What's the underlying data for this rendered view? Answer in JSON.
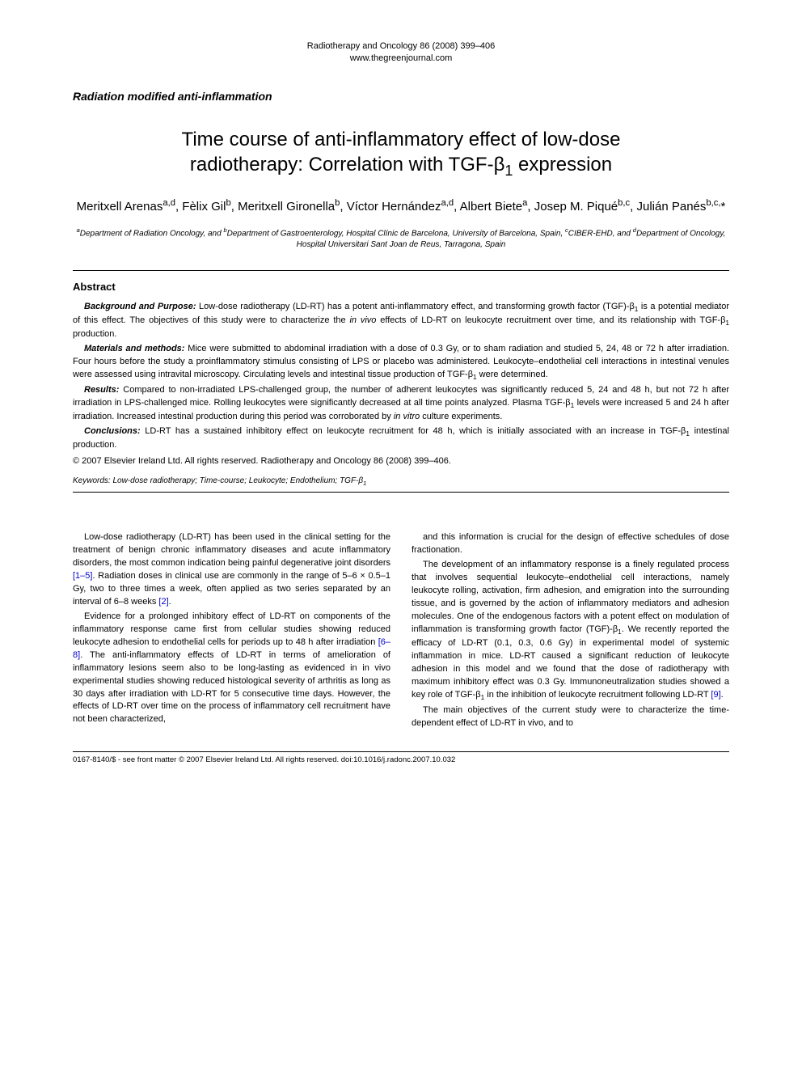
{
  "header": {
    "journal_line": "Radiotherapy and Oncology 86 (2008) 399–406",
    "url": "www.thegreenjournal.com"
  },
  "section_label": "Radiation modified anti-inflammation",
  "title_line1": "Time course of anti-inflammatory effect of low-dose",
  "title_line2_pre": "radiotherapy: Correlation with TGF-β",
  "title_line2_sub": "1",
  "title_line2_post": " expression",
  "authors_html": "Meritxell Arenas<sup>a,d</sup>, Fèlix Gil<sup>b</sup>, Meritxell Gironella<sup>b</sup>, Víctor Hernández<sup>a,d</sup>, Albert Biete<sup>a</sup>, Josep M. Piqué<sup>b,c</sup>, Julián Panés<sup>b,c,</sup>*",
  "affiliations_html": "<sup>a</sup>Department of Radiation Oncology, and <sup>b</sup>Department of Gastroenterology, Hospital Clínic de Barcelona, University of Barcelona, Spain, <sup>c</sup>CIBER-EHD, and <sup>d</sup>Department of Oncology, Hospital Universitari Sant Joan de Reus, Tarragona, Spain",
  "abstract": {
    "heading": "Abstract",
    "segments": [
      {
        "label": "Background and Purpose:",
        "text_html": " Low-dose radiotherapy (LD-RT) has a potent anti-inflammatory effect, and transforming growth factor (TGF)-β<sub>1</sub> is a potential mediator of this effect. The objectives of this study were to characterize the <span class=\"italic\">in vivo</span> effects of LD-RT on leukocyte recruitment over time, and its relationship with TGF-β<sub>1</sub> production."
      },
      {
        "label": "Materials and methods:",
        "text_html": " Mice were submitted to abdominal irradiation with a dose of 0.3 Gy, or to sham radiation and studied 5, 24, 48 or 72 h after irradiation. Four hours before the study a proinflammatory stimulus consisting of LPS or placebo was administered. Leukocyte–endothelial cell interactions in intestinal venules were assessed using intravital microscopy. Circulating levels and intestinal tissue production of TGF-β<sub>1</sub> were determined."
      },
      {
        "label": "Results:",
        "text_html": " Compared to non-irradiated LPS-challenged group, the number of adherent leukocytes was significantly reduced 5, 24 and 48 h, but not 72 h after irradiation in LPS-challenged mice. Rolling leukocytes were significantly decreased at all time points analyzed. Plasma TGF-β<sub>1</sub> levels were increased 5 and 24 h after irradiation. Increased intestinal production during this period was corroborated by <span class=\"italic\">in vitro</span> culture experiments."
      },
      {
        "label": "Conclusions:",
        "text_html": " LD-RT has a sustained inhibitory effect on leukocyte recruitment for 48 h, which is initially associated with an increase in TGF-β<sub>1</sub> intestinal production."
      }
    ],
    "copyright": "© 2007 Elsevier Ireland Ltd. All rights reserved. Radiotherapy and Oncology 86 (2008) 399–406."
  },
  "keywords": {
    "label": "Keywords:",
    "text_html": " Low-dose radiotherapy; Time-course; Leukocyte; Endothelium; TGF-β<sub>1</sub>"
  },
  "body": {
    "left": [
      "Low-dose radiotherapy (LD-RT) has been used in the clinical setting for the treatment of benign chronic inflammatory diseases and acute inflammatory disorders, the most common indication being painful degenerative joint disorders <span class=\"ref-link\">[1–5]</span>. Radiation doses in clinical use are commonly in the range of 5–6 × 0.5–1 Gy, two to three times a week, often applied as two series separated by an interval of 6–8 weeks <span class=\"ref-link\">[2]</span>.",
      "Evidence for a prolonged inhibitory effect of LD-RT on components of the inflammatory response came first from cellular studies showing reduced leukocyte adhesion to endothelial cells for periods up to 48 h after irradiation <span class=\"ref-link\">[6–8]</span>. The anti-inflammatory effects of LD-RT in terms of amelioration of inflammatory lesions seem also to be long-lasting as evidenced in <span class=\"italic\">in vivo</span> experimental studies showing reduced histological severity of arthritis as long as 30 days after irradiation with LD-RT for 5 consecutive time days. However, the effects of LD-RT over time on the process of inflammatory cell recruitment have not been characterized,"
    ],
    "right": [
      "and this information is crucial for the design of effective schedules of dose fractionation.",
      "The development of an inflammatory response is a finely regulated process that involves sequential leukocyte–endothelial cell interactions, namely leukocyte rolling, activation, firm adhesion, and emigration into the surrounding tissue, and is governed by the action of inflammatory mediators and adhesion molecules. One of the endogenous factors with a potent effect on modulation of inflammation is transforming growth factor (TGF)-β<sub>1</sub>. We recently reported the efficacy of LD-RT (0.1, 0.3, 0.6 Gy) in experimental model of systemic inflammation in mice. LD-RT caused a significant reduction of leukocyte adhesion in this model and we found that the dose of radiotherapy with maximum inhibitory effect was 0.3 Gy. Immunoneutralization studies showed a key role of TGF-β<sub>1</sub> in the inhibition of leukocyte recruitment following LD-RT <span class=\"ref-link\">[9]</span>.",
      "The main objectives of the current study were to characterize the time-dependent effect of LD-RT <span class=\"italic\">in vivo</span>, and to"
    ]
  },
  "footer": "0167-8140/$ - see front matter © 2007 Elsevier Ireland Ltd. All rights reserved. doi:10.1016/j.radonc.2007.10.032"
}
